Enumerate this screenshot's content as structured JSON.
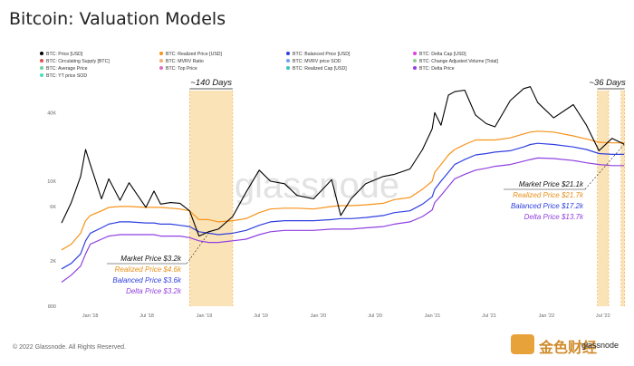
{
  "page": {
    "title": "Bitcoin: Valuation Models",
    "footer": "© 2022 Glassnode. All Rights Reserved.",
    "watermark": "glassnode",
    "corner_brand": "金色财经",
    "corner_sub": "glassnode"
  },
  "legend": [
    {
      "label": "BTC: Price [USD]",
      "color": "#000000"
    },
    {
      "label": "BTC: Realized Price [USD]",
      "color": "#f7931a"
    },
    {
      "label": "BTC: Balanced Price [USD]",
      "color": "#3040e0"
    },
    {
      "label": "BTC: Delta Cap [USD]",
      "color": "#e040e0"
    },
    {
      "label": "BTC: Circulating Supply [BTC]",
      "color": "#e05050"
    },
    {
      "label": "BTC: MVRV Ratio",
      "color": "#f0b070"
    },
    {
      "label": "BTC: MVRV price SOD",
      "color": "#70a0f0"
    },
    {
      "label": "BTC: Change Adjusted Volume [Total]",
      "color": "#90d090"
    },
    {
      "label": "BTC: Average Price",
      "color": "#70d0a0"
    },
    {
      "label": "BTC: Top Price",
      "color": "#e070c0"
    },
    {
      "label": "BTC: Realized Cap [USD]",
      "color": "#40c0c0"
    },
    {
      "label": "BTC: Delta Price",
      "color": "#9040e0"
    },
    {
      "label": "BTC: YT price SOD",
      "color": "#40e0c0"
    }
  ],
  "annotations": {
    "band1_label": "~140 Days",
    "band2_label": "~36 Days",
    "box1": [
      "Market Price $3.2k",
      "Realized Price $4.6k",
      "Balanced Price $3.6k",
      "Delta Price $3.2k"
    ],
    "box2": [
      "Market Price $21.1k",
      "Realized Price $21.7k",
      "Balanced Price $17.2k",
      "Delta Price $13.7k"
    ]
  },
  "chart_data": {
    "type": "line",
    "yscale": "log",
    "ylim": [
      800,
      90000
    ],
    "yticks": [
      {
        "v": 800,
        "label": "800"
      },
      {
        "v": 2000,
        "label": "2K"
      },
      {
        "v": 6000,
        "label": "6K"
      },
      {
        "v": 10000,
        "label": "10K"
      },
      {
        "v": 40000,
        "label": "40K"
      }
    ],
    "xlim": [
      "2017-10-01",
      "2022-09-15"
    ],
    "xticks": [
      {
        "date": "2018-01-01",
        "label": "Jan '18"
      },
      {
        "date": "2018-07-01",
        "label": "Jul '18"
      },
      {
        "date": "2019-01-01",
        "label": "Jan '19"
      },
      {
        "date": "2019-07-01",
        "label": "Jul '19"
      },
      {
        "date": "2020-01-01",
        "label": "Jan '20"
      },
      {
        "date": "2020-07-01",
        "label": "Jul '20"
      },
      {
        "date": "2021-01-01",
        "label": "Jan '21"
      },
      {
        "date": "2021-07-01",
        "label": "Jul '21"
      },
      {
        "date": "2022-01-01",
        "label": "Jan '22"
      },
      {
        "date": "2022-07-01",
        "label": "Jul '22"
      }
    ],
    "bands": [
      {
        "from": "2018-11-15",
        "to": "2019-04-02"
      },
      {
        "from": "2022-06-13",
        "to": "2022-07-19"
      },
      {
        "from": "2022-08-28",
        "to": "2022-09-08"
      }
    ],
    "x": [
      "2017-10-01",
      "2017-11-01",
      "2017-12-01",
      "2017-12-17",
      "2018-01-01",
      "2018-02-06",
      "2018-03-01",
      "2018-04-06",
      "2018-05-05",
      "2018-06-28",
      "2018-07-24",
      "2018-08-14",
      "2018-09-15",
      "2018-10-15",
      "2018-11-15",
      "2018-12-15",
      "2019-01-15",
      "2019-02-15",
      "2019-04-02",
      "2019-05-15",
      "2019-06-26",
      "2019-08-01",
      "2019-09-15",
      "2019-10-25",
      "2019-12-17",
      "2020-02-13",
      "2020-03-13",
      "2020-04-15",
      "2020-06-01",
      "2020-07-27",
      "2020-09-01",
      "2020-10-21",
      "2020-11-30",
      "2020-12-31",
      "2021-01-08",
      "2021-01-28",
      "2021-02-21",
      "2021-03-13",
      "2021-04-14",
      "2021-05-19",
      "2021-06-22",
      "2021-07-20",
      "2021-09-07",
      "2021-10-20",
      "2021-11-10",
      "2021-12-04",
      "2022-01-24",
      "2022-03-28",
      "2022-05-09",
      "2022-06-18",
      "2022-07-30",
      "2022-09-07"
    ],
    "series": [
      {
        "name": "BTC: Price [USD]",
        "color": "#000000",
        "values": [
          4300,
          6500,
          11000,
          19000,
          14000,
          7000,
          10500,
          6800,
          9700,
          5900,
          8200,
          6300,
          6500,
          6400,
          5500,
          3300,
          3600,
          3800,
          4900,
          8000,
          12500,
          10000,
          9500,
          7500,
          7000,
          10300,
          5000,
          7000,
          9500,
          11000,
          11500,
          12800,
          19000,
          28900,
          40000,
          31000,
          57000,
          61000,
          63000,
          38000,
          32000,
          30000,
          51000,
          65000,
          67500,
          49000,
          36000,
          47000,
          31000,
          18500,
          23800,
          21100
        ]
      },
      {
        "name": "BTC: Realized Price [USD]",
        "color": "#f7931a",
        "values": [
          2500,
          2800,
          3500,
          4500,
          5000,
          5500,
          5900,
          6000,
          6000,
          5900,
          5900,
          5900,
          5800,
          5700,
          5500,
          4600,
          4600,
          4400,
          4500,
          4700,
          5300,
          5700,
          5800,
          5800,
          5700,
          6000,
          6100,
          6100,
          6200,
          6400,
          6900,
          7200,
          8500,
          10000,
          12000,
          14000,
          17000,
          19000,
          21000,
          23000,
          23000,
          23000,
          24000,
          26000,
          27000,
          27500,
          27000,
          25000,
          23500,
          22000,
          21700,
          21700
        ]
      },
      {
        "name": "BTC: Balanced Price [USD]",
        "color": "#3040e0",
        "values": [
          1700,
          1900,
          2300,
          3000,
          3500,
          3900,
          4200,
          4400,
          4400,
          4300,
          4300,
          4200,
          4200,
          4100,
          4000,
          3600,
          3500,
          3400,
          3500,
          3700,
          4100,
          4400,
          4500,
          4500,
          4500,
          4600,
          4700,
          4700,
          4800,
          5000,
          5300,
          5500,
          6300,
          7300,
          8500,
          10000,
          12000,
          14000,
          15500,
          17000,
          17500,
          18000,
          18500,
          20000,
          21000,
          21500,
          21000,
          20000,
          19000,
          17500,
          17200,
          17200
        ]
      },
      {
        "name": "BTC: Delta Price",
        "color": "#9040e0",
        "values": [
          1300,
          1500,
          1800,
          2300,
          2800,
          3100,
          3300,
          3400,
          3400,
          3400,
          3400,
          3300,
          3300,
          3300,
          3200,
          3000,
          2900,
          2900,
          3000,
          3100,
          3400,
          3600,
          3700,
          3700,
          3700,
          3800,
          3800,
          3800,
          3900,
          4000,
          4200,
          4400,
          4900,
          5600,
          6500,
          7500,
          9000,
          10500,
          11500,
          12500,
          13000,
          13500,
          14000,
          15000,
          15500,
          16000,
          15800,
          15200,
          14500,
          14000,
          13700,
          13700
        ]
      }
    ]
  }
}
